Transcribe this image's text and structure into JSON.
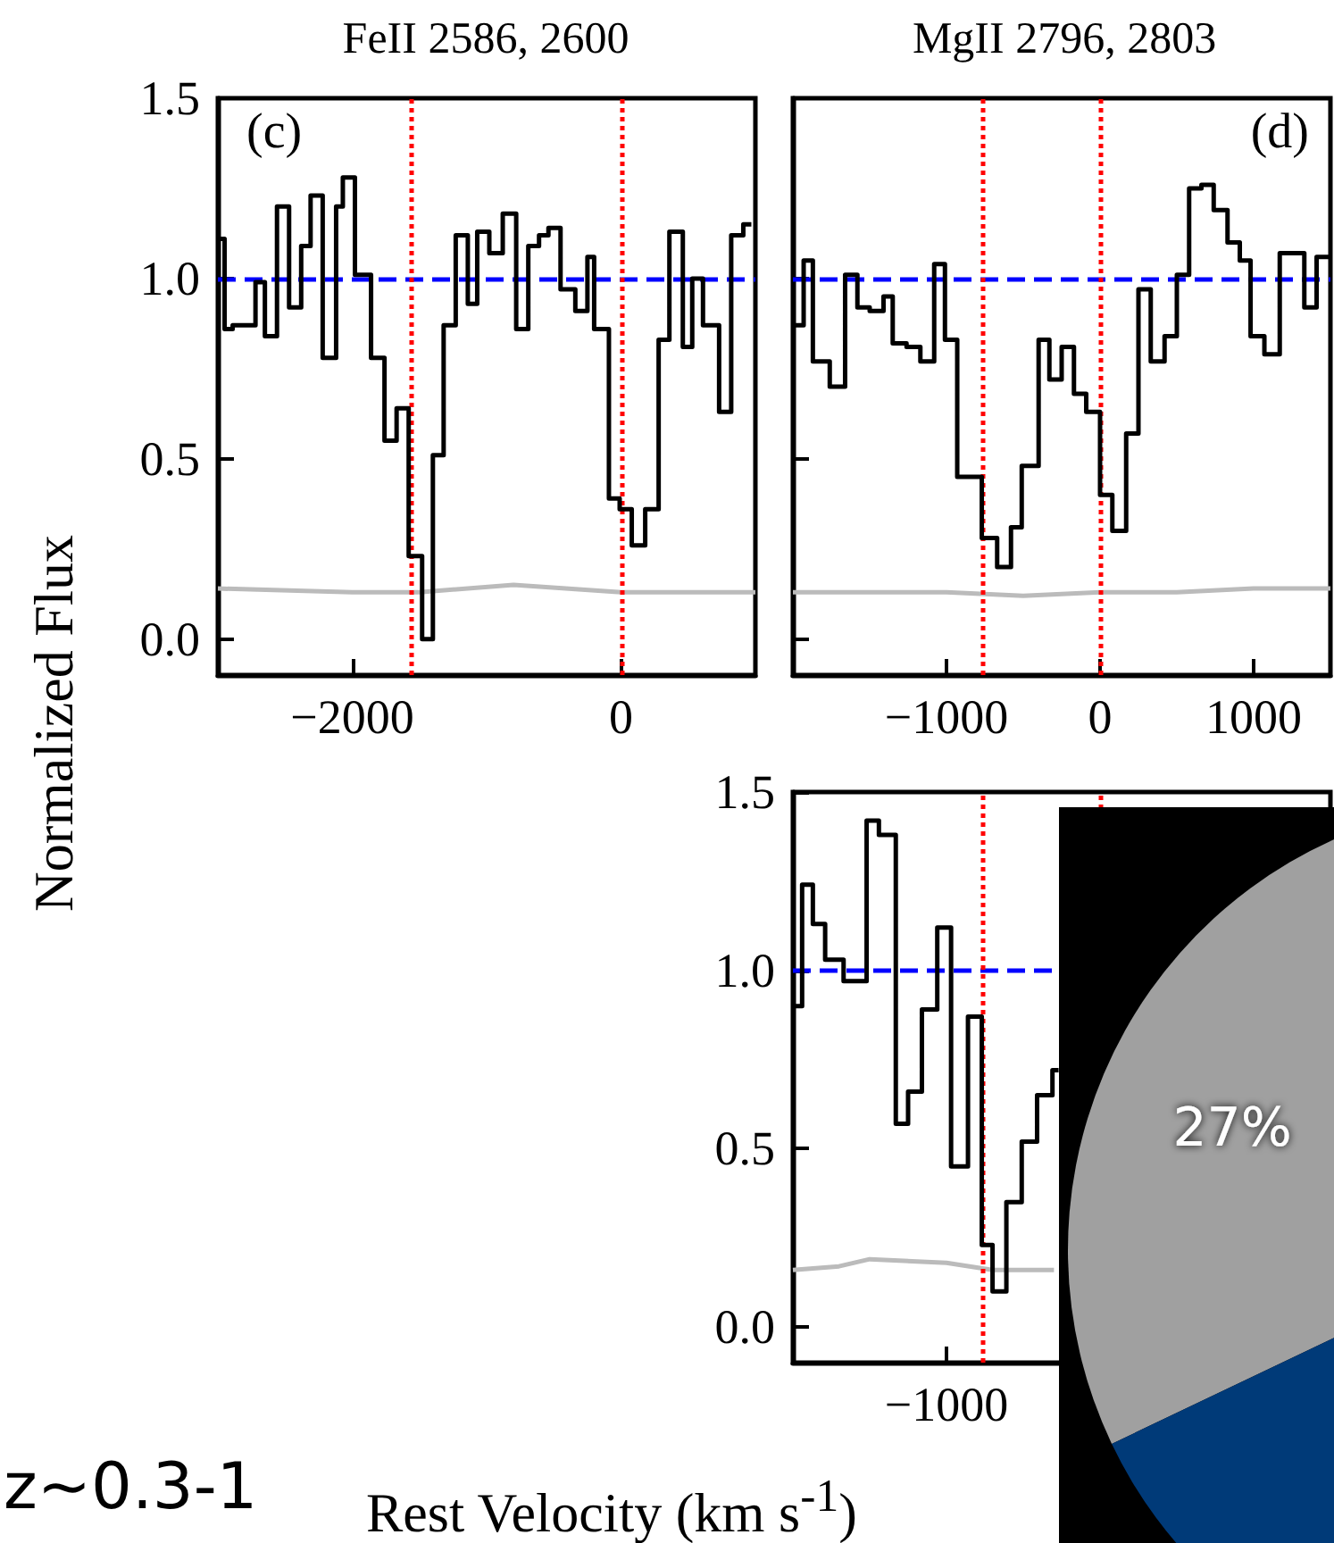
{
  "chart_data": [
    {
      "type": "step",
      "title": "FeII 2586, 2600",
      "ylabel": "Normalized Flux",
      "annotations": [
        "(c)"
      ],
      "xlim": [
        -3000,
        1000
      ],
      "ylim": [
        -0.1,
        1.5
      ],
      "xticks": [
        {
          "value": -2000,
          "label": "−2000"
        },
        0
      ],
      "yticks": [
        {
          "value": 0,
          "label": "0.0"
        },
        {
          "value": 0.5,
          "label": "0.5"
        },
        {
          "value": 1,
          "label": "1.0"
        },
        {
          "value": 1.5,
          "label": "1.5"
        }
      ],
      "series": [
        {
          "color": "#000000",
          "x": [
            -3000,
            -2950,
            -2890,
            -2720,
            -2650,
            -2560,
            -2470,
            -2380,
            -2310,
            -2220,
            -2120,
            -2070,
            -1980,
            -1860,
            -1760,
            -1670,
            -1580,
            -1480,
            -1400,
            -1320,
            -1230,
            -1140,
            -1070,
            -980,
            -880,
            -780,
            -690,
            -610,
            -540,
            -450,
            -340,
            -250,
            -200,
            -90,
            -10,
            80,
            180,
            280,
            360,
            460,
            530,
            610,
            730,
            820,
            910,
            970
          ],
          "values": [
            1.11,
            0.86,
            0.87,
            0.99,
            0.84,
            1.2,
            0.92,
            1.09,
            1.23,
            0.78,
            1.2,
            1.28,
            1.01,
            0.78,
            0.55,
            0.64,
            0.23,
            0.0,
            0.51,
            0.87,
            1.12,
            0.93,
            1.13,
            1.07,
            1.18,
            0.86,
            1.09,
            1.12,
            1.14,
            0.97,
            0.91,
            1.06,
            0.86,
            0.39,
            0.36,
            0.26,
            0.36,
            0.83,
            1.13,
            0.81,
            1.0,
            0.87,
            0.63,
            1.12,
            1.15,
            1.15
          ]
        },
        {
          "type": "line",
          "color": "#bbbbbb",
          "x": [
            -3000,
            -2000,
            -1500,
            -800,
            0,
            600,
            1000
          ],
          "values": [
            0.14,
            0.13,
            0.13,
            0.15,
            0.13,
            0.13,
            0.13
          ]
        }
      ],
      "ref_lines": [
        {
          "axis": "y",
          "value": 1,
          "color": "#0000ff",
          "line_style": "dashed"
        },
        {
          "axis": "x",
          "value": -1560,
          "color": "#ff0000",
          "line_style": "dotted"
        },
        {
          "axis": "x",
          "value": 0,
          "color": "#ff0000",
          "line_style": "dotted"
        }
      ]
    },
    {
      "type": "step",
      "title": "MgII 2796, 2803",
      "annotations": [
        "(d)"
      ],
      "tick_labels": "x",
      "xlim": [
        -2000,
        1500
      ],
      "ylim": [
        -0.1,
        1.5
      ],
      "xticks": [
        {
          "value": -1000,
          "label": "−1000"
        },
        0,
        1000
      ],
      "yticks": [
        0,
        0.5,
        1,
        1.5
      ],
      "series": [
        {
          "color": "#000000",
          "x": [
            -2000,
            -1930,
            -1870,
            -1760,
            -1660,
            -1580,
            -1500,
            -1410,
            -1350,
            -1260,
            -1170,
            -1080,
            -1010,
            -930,
            -770,
            -670,
            -580,
            -510,
            -400,
            -330,
            -250,
            -170,
            -90,
            0,
            80,
            170,
            250,
            330,
            420,
            500,
            580,
            660,
            740,
            830,
            910,
            980,
            1070,
            1170,
            1240,
            1330,
            1410,
            1500
          ],
          "values": [
            0.87,
            1.05,
            0.77,
            0.7,
            1.01,
            0.92,
            0.91,
            0.95,
            0.82,
            0.81,
            0.77,
            1.04,
            0.83,
            0.45,
            0.28,
            0.2,
            0.31,
            0.48,
            0.83,
            0.72,
            0.81,
            0.68,
            0.63,
            0.4,
            0.3,
            0.57,
            0.97,
            0.77,
            0.84,
            1.01,
            1.25,
            1.26,
            1.19,
            1.1,
            1.05,
            0.84,
            0.79,
            1.07,
            1.07,
            0.92,
            1.06,
            1.06
          ]
        },
        {
          "type": "line",
          "color": "#bbbbbb",
          "x": [
            -2000,
            -1000,
            -500,
            0,
            500,
            1000,
            1500
          ],
          "values": [
            0.13,
            0.13,
            0.12,
            0.13,
            0.13,
            0.14,
            0.14
          ]
        }
      ],
      "ref_lines": [
        {
          "axis": "y",
          "value": 1,
          "color": "#0000ff",
          "line_style": "dashed"
        },
        {
          "axis": "x",
          "value": -770,
          "color": "#ff0000",
          "line_style": "dotted"
        },
        {
          "axis": "x",
          "value": 0,
          "color": "#ff0000",
          "line_style": "dotted"
        }
      ]
    },
    {
      "type": "step",
      "xlabel": "Rest Velocity (km s$^{-1}$)",
      "annotations": [
        "z~0.3-1",
        "−1000"
      ],
      "tick_labels": "y",
      "xlim": [
        -2000,
        1500
      ],
      "ylim": [
        -0.1,
        1.5
      ],
      "xticks": [
        -1000,
        0,
        1000
      ],
      "yticks": [
        {
          "value": 0,
          "label": "0.0"
        },
        {
          "value": 0.5,
          "label": "0.5"
        },
        {
          "value": 1,
          "label": "1.0"
        },
        {
          "value": 1.5,
          "label": "1.5"
        }
      ],
      "series": [
        {
          "color": "#000000",
          "x": [
            -2000,
            -1940,
            -1870,
            -1790,
            -1670,
            -1520,
            -1440,
            -1330,
            -1250,
            -1160,
            -1060,
            -970,
            -860,
            -770,
            -700,
            -610,
            -510,
            -410,
            -310,
            -270
          ],
          "values": [
            0.9,
            1.24,
            1.13,
            1.03,
            0.97,
            1.42,
            1.38,
            0.57,
            0.66,
            0.89,
            1.12,
            0.45,
            0.87,
            0.23,
            0.1,
            0.35,
            0.52,
            0.65,
            0.72,
            0.72
          ]
        },
        {
          "type": "line",
          "color": "#bbbbbb",
          "x": [
            -2000,
            -1700,
            -1500,
            -1000,
            -700,
            -300
          ],
          "values": [
            0.16,
            0.17,
            0.19,
            0.18,
            0.16,
            0.16
          ]
        }
      ],
      "ref_lines": [
        {
          "axis": "y",
          "value": 1,
          "color": "#0000ff",
          "line_style": "dashed"
        },
        {
          "axis": "x",
          "value": -770,
          "color": "#ff0000",
          "line_style": "dotted"
        },
        {
          "axis": "x",
          "value": 0,
          "color": "#ff0000",
          "line_style": "dotted"
        }
      ]
    },
    {
      "type": "pie",
      "categories": [
        null,
        null
      ],
      "values": [
        27,
        73
      ],
      "colors": [
        "#a0a0a0",
        "#003a78"
      ],
      "value_labels": [
        "27%",
        null
      ]
    }
  ]
}
